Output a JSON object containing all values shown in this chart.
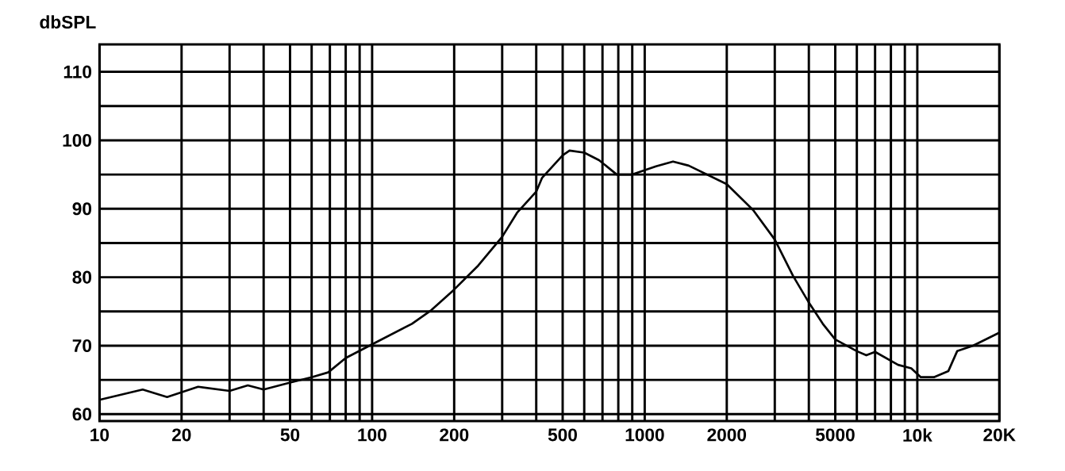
{
  "chart_data": {
    "type": "line",
    "ylabel": "dbSPL",
    "log": "x",
    "xlim": [
      10,
      20000
    ],
    "xticks": [
      10,
      20,
      50,
      100,
      200,
      500,
      1000,
      2000,
      5000,
      {
        "value": 10000,
        "label": "10k"
      },
      {
        "value": 20000,
        "label": "20K"
      }
    ],
    "ylim": [
      59,
      114
    ],
    "yticks": [
      60,
      {
        "value": 65,
        "label": null
      },
      70,
      {
        "value": 75,
        "label": null
      },
      80,
      {
        "value": 85,
        "label": null
      },
      90,
      {
        "value": 95,
        "label": null
      },
      100,
      {
        "value": 105,
        "label": null
      },
      110
    ],
    "grid": true,
    "marker": "none",
    "line_style": "solid",
    "x": [
      10,
      14.4,
      17.7,
      23,
      30,
      35,
      40,
      50,
      60,
      69,
      80,
      100,
      140,
      165,
      200,
      245,
      300,
      340,
      400,
      420,
      500,
      530,
      600,
      680,
      790,
      900,
      1100,
      1270,
      1450,
      2000,
      2500,
      3000,
      3500,
      4000,
      4500,
      5000,
      6000,
      6500,
      7000,
      8500,
      9500,
      10300,
      11500,
      13000,
      14000,
      16000,
      20000
    ],
    "series": [
      {
        "color": "#000000",
        "values": [
          62.1,
          63.6,
          62.5,
          64.0,
          63.4,
          64.2,
          63.6,
          64.6,
          65.4,
          66.1,
          68.2,
          70.2,
          73.2,
          75.2,
          78.2,
          81.7,
          85.9,
          89.4,
          92.5,
          94.5,
          97.8,
          98.5,
          98.2,
          97.1,
          95.0,
          95.0,
          96.2,
          96.9,
          96.3,
          93.6,
          89.8,
          85.5,
          80.2,
          76.3,
          73.2,
          70.9,
          69.2,
          68.6,
          69.1,
          67.2,
          66.7,
          65.4,
          65.4,
          66.3,
          69.2,
          70.0,
          71.9
        ]
      }
    ]
  }
}
